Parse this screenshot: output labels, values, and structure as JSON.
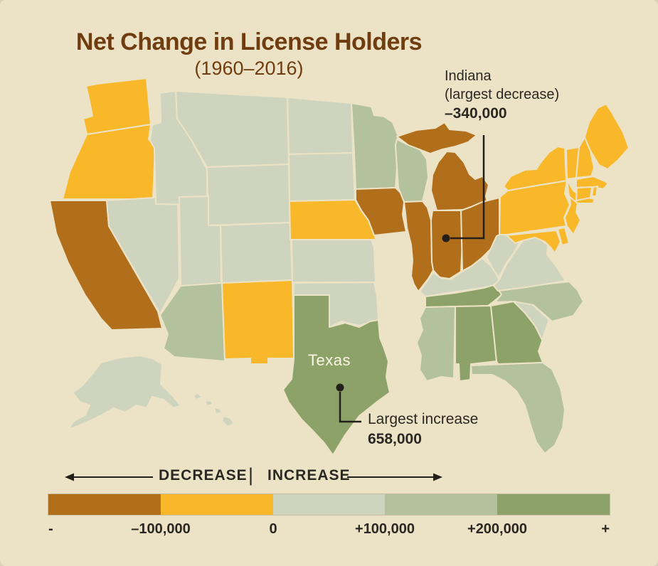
{
  "title": {
    "text": "Net Change in License Holders",
    "subtitle": "(1960–2016)"
  },
  "map": {
    "texas_label": "Texas"
  },
  "annotations": {
    "indiana": {
      "line1": "Indiana",
      "line2": "(largest decrease)",
      "value": "–340,000"
    },
    "largest_increase": {
      "line1": "Largest increase",
      "value": "658,000"
    }
  },
  "legend": {
    "decrease_label": "DECREASE",
    "increase_label": "INCREASE",
    "divider": "|",
    "tick_labels": [
      "-",
      "–100,000",
      "0",
      "+100,000",
      "+200,000",
      "+"
    ]
  },
  "colors": {
    "background": "#ece3c6",
    "title": "#6f3d10",
    "text": "#2b2823",
    "state_border": "#ece3c6",
    "leader_line": "#23201b"
  },
  "chart_data": {
    "type": "heatmap",
    "subtype": "us_state_choropleth",
    "title": "Net Change in License Holders",
    "period": "1960–2016",
    "unit": "net change in license holders per state",
    "legend_orientation": "horizontal",
    "legend_ticks": [
      "-",
      "–100,000",
      "0",
      "+100,000",
      "+200,000",
      "+"
    ],
    "bins": [
      {
        "range": "decrease greater than 100,000",
        "color": "#b26f1b",
        "states": [
          "CA",
          "IA",
          "IL",
          "IN",
          "MI",
          "OH"
        ]
      },
      {
        "range": "-100,000 to 0",
        "color": "#f9b829",
        "states": [
          "WA",
          "OR",
          "NE",
          "NM",
          "NY",
          "PA",
          "NJ",
          "MD",
          "DE",
          "CT",
          "RI",
          "MA",
          "VT",
          "NH",
          "ME"
        ]
      },
      {
        "range": "0 to +100,000",
        "color": "#cfd4bf",
        "states": [
          "MT",
          "ID",
          "WY",
          "NV",
          "UT",
          "CO",
          "ND",
          "SD",
          "KS",
          "OK",
          "KY",
          "WV",
          "VA",
          "SC",
          "AK",
          "HI"
        ]
      },
      {
        "range": "+100,000 to +200,000",
        "color": "#b4c19d",
        "states": [
          "MN",
          "WI",
          "MO",
          "AR",
          "LA",
          "MS",
          "NC",
          "FL",
          "AZ"
        ]
      },
      {
        "range": "increase greater than 200,000",
        "color": "#8da268",
        "states": [
          "TX",
          "TN",
          "GA",
          "AL"
        ]
      }
    ],
    "annotations": [
      {
        "state": "Indiana",
        "label": "largest decrease",
        "value": -340000,
        "display": "–340,000"
      },
      {
        "state": "Texas",
        "label": "largest increase",
        "value": 658000,
        "display": "658,000"
      }
    ]
  }
}
